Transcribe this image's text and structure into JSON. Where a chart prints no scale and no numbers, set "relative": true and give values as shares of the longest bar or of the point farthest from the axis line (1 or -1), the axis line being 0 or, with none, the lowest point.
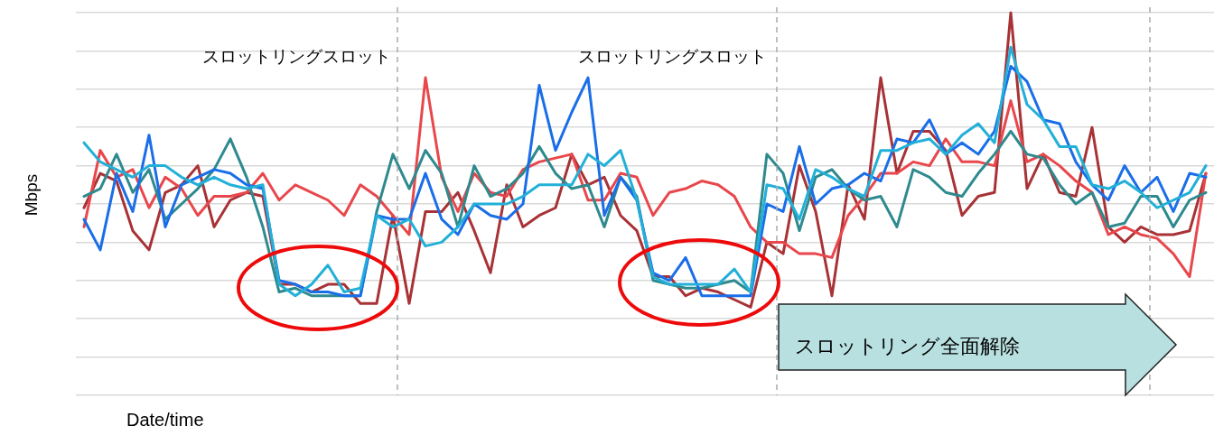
{
  "chart_data": {
    "type": "line",
    "relative": true,
    "ylabel": "Mbps",
    "xlabel": "Date/time",
    "annotations": [
      "スロットリングスロット",
      "スロットリングスロット",
      "スロットリング全面解除"
    ],
    "categories": [
      null,
      null,
      null,
      null,
      null,
      null,
      null,
      null,
      null,
      null,
      null,
      null,
      null,
      null,
      null,
      null,
      null,
      null,
      null,
      null,
      null,
      null,
      null,
      null,
      null,
      null,
      null,
      null,
      null,
      null,
      null,
      null,
      null,
      null,
      null,
      null,
      null,
      null,
      null,
      null,
      null,
      null,
      null,
      null,
      null,
      null,
      null,
      null,
      null,
      null,
      null,
      null,
      null,
      null,
      null,
      null,
      null,
      null,
      null,
      null,
      null,
      null,
      null,
      null,
      null,
      null,
      null,
      null,
      null,
      null
    ],
    "grid": "y",
    "legend": false,
    "marker": "none",
    "line_style": "solid",
    "series": [
      {
        "color": "#22b0d8",
        "values": [
          0.66,
          0.61,
          0.59,
          0.57,
          0.6,
          0.6,
          0.57,
          0.55,
          0.57,
          0.55,
          0.54,
          0.55,
          0.29,
          0.26,
          0.29,
          0.34,
          0.27,
          0.28,
          0.47,
          0.44,
          0.46,
          0.39,
          0.4,
          0.44,
          0.5,
          0.5,
          0.5,
          0.52,
          0.55,
          0.55,
          0.55,
          0.63,
          0.6,
          0.64,
          0.51,
          0.31,
          0.29,
          0.29,
          0.29,
          0.29,
          0.33,
          0.27,
          0.55,
          0.54,
          0.46,
          0.59,
          0.57,
          0.54,
          0.52,
          0.64,
          0.64,
          0.66,
          0.67,
          0.63,
          0.68,
          0.71,
          0.66,
          0.91,
          0.76,
          0.72,
          0.65,
          0.65,
          0.55,
          0.54,
          0.56,
          0.53,
          0.49,
          0.51,
          0.53,
          0.6
        ]
      },
      {
        "color": "#1a6ee8",
        "values": [
          0.46,
          0.38,
          0.58,
          0.48,
          0.68,
          0.44,
          0.55,
          0.57,
          0.59,
          0.58,
          0.55,
          0.54,
          0.3,
          0.29,
          0.27,
          0.27,
          0.26,
          0.26,
          0.47,
          0.46,
          0.46,
          0.58,
          0.46,
          0.42,
          0.5,
          0.47,
          0.46,
          0.5,
          0.81,
          0.64,
          0.74,
          0.83,
          0.47,
          0.57,
          0.51,
          0.32,
          0.3,
          0.36,
          0.26,
          0.26,
          0.26,
          0.26,
          0.5,
          0.48,
          0.65,
          0.5,
          0.54,
          0.55,
          0.58,
          0.56,
          0.67,
          0.66,
          0.72,
          0.63,
          0.66,
          0.63,
          0.69,
          0.86,
          0.82,
          0.72,
          0.71,
          0.61,
          0.55,
          0.51,
          0.6,
          0.53,
          0.57,
          0.48,
          0.58,
          0.57
        ]
      },
      {
        "color": "#2e8a8e",
        "values": [
          0.52,
          0.54,
          0.63,
          0.53,
          0.59,
          0.46,
          0.5,
          0.54,
          0.59,
          0.67,
          0.57,
          0.44,
          0.27,
          0.28,
          0.26,
          0.26,
          0.26,
          0.26,
          0.48,
          0.63,
          0.54,
          0.64,
          0.58,
          0.44,
          0.6,
          0.52,
          0.54,
          0.58,
          0.65,
          0.58,
          0.54,
          0.55,
          0.44,
          0.57,
          0.52,
          0.3,
          0.29,
          0.28,
          0.28,
          0.29,
          0.3,
          0.27,
          0.63,
          0.58,
          0.43,
          0.57,
          0.59,
          0.54,
          0.51,
          0.52,
          0.44,
          0.59,
          0.57,
          0.53,
          0.52,
          0.58,
          0.63,
          0.69,
          0.63,
          0.62,
          0.55,
          0.5,
          0.53,
          0.44,
          0.45,
          0.52,
          0.52,
          0.44,
          0.51,
          0.53
        ]
      },
      {
        "color": "#e8474c",
        "values": [
          0.44,
          0.64,
          0.57,
          0.59,
          0.49,
          0.57,
          0.54,
          0.47,
          0.52,
          0.52,
          0.53,
          0.58,
          0.51,
          0.55,
          0.53,
          0.51,
          0.47,
          0.55,
          0.52,
          0.47,
          0.42,
          0.83,
          0.57,
          0.48,
          0.58,
          0.53,
          0.52,
          0.59,
          0.61,
          0.62,
          0.63,
          0.51,
          0.51,
          0.58,
          0.57,
          0.47,
          0.53,
          0.54,
          0.56,
          0.55,
          0.52,
          0.44,
          0.4,
          0.4,
          0.37,
          0.37,
          0.36,
          0.47,
          0.52,
          0.58,
          0.58,
          0.61,
          0.6,
          0.67,
          0.61,
          0.61,
          0.6,
          0.77,
          0.61,
          0.63,
          0.6,
          0.56,
          0.53,
          0.42,
          0.44,
          0.42,
          0.41,
          0.37,
          0.31,
          0.58
        ]
      },
      {
        "color": "#a83236",
        "values": [
          0.49,
          0.58,
          0.56,
          0.43,
          0.38,
          0.53,
          0.55,
          0.6,
          0.44,
          0.51,
          0.53,
          0.52,
          0.29,
          0.29,
          0.27,
          0.29,
          0.29,
          0.24,
          0.24,
          0.47,
          0.24,
          0.48,
          0.48,
          0.53,
          0.43,
          0.32,
          0.55,
          0.44,
          0.47,
          0.49,
          0.63,
          0.55,
          0.57,
          0.47,
          0.43,
          0.31,
          0.31,
          0.26,
          0.28,
          0.27,
          0.25,
          0.23,
          0.4,
          0.37,
          0.6,
          0.48,
          0.26,
          0.55,
          0.46,
          0.83,
          0.58,
          0.69,
          0.69,
          0.64,
          0.47,
          0.52,
          0.53,
          1.0,
          0.54,
          0.63,
          0.53,
          0.52,
          0.7,
          0.44,
          0.4,
          0.44,
          0.42,
          0.42,
          0.43,
          0.58
        ]
      }
    ]
  }
}
